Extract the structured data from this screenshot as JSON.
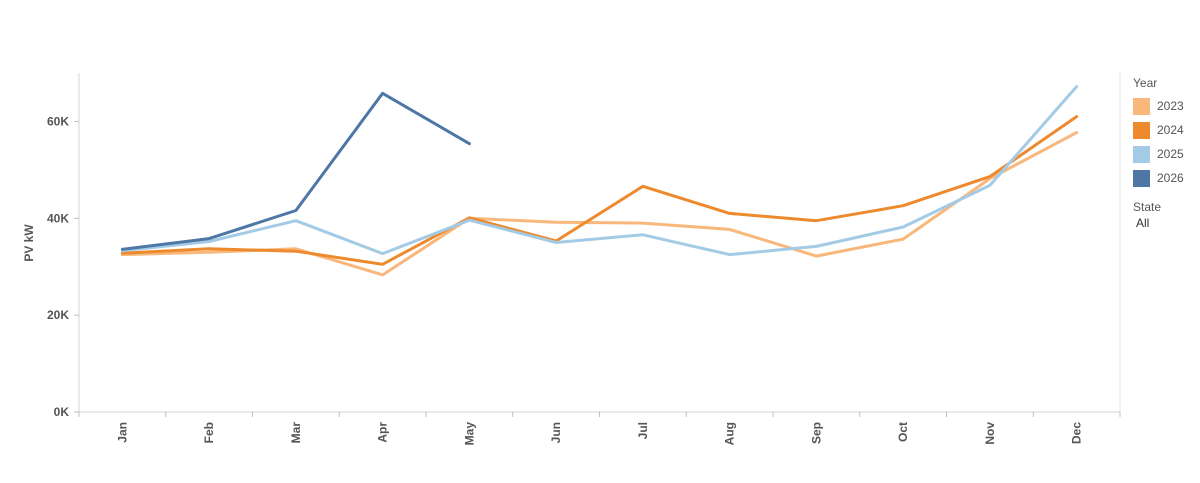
{
  "chart_data": {
    "type": "line",
    "ylabel": "PV kW",
    "y_ticks": [
      "0K",
      "20K",
      "40K",
      "60K"
    ],
    "y_tick_values": [
      0,
      20000,
      40000,
      60000
    ],
    "ylim": [
      0,
      70000
    ],
    "categories": [
      "Jan",
      "Feb",
      "Mar",
      "Apr",
      "May",
      "Jun",
      "Jul",
      "Aug",
      "Sep",
      "Oct",
      "Nov",
      "Dec"
    ],
    "series": [
      {
        "name": "2023",
        "color": "#F9B77B",
        "values": [
          32500,
          33000,
          33700,
          28300,
          40000,
          39200,
          39000,
          37700,
          32200,
          35700,
          48200,
          57700
        ]
      },
      {
        "name": "2024",
        "color": "#EE8A2E",
        "values": [
          32800,
          33700,
          33200,
          30500,
          40100,
          35300,
          46600,
          41000,
          39500,
          42600,
          48600,
          61000
        ]
      },
      {
        "name": "2025",
        "color": "#A3CBE6",
        "values": [
          33300,
          35200,
          39500,
          32700,
          39600,
          35000,
          36600,
          32500,
          34200,
          38200,
          46800,
          67200
        ]
      },
      {
        "name": "2026",
        "color": "#4E77A6",
        "values": [
          33600,
          35800,
          41600,
          65800,
          55400,
          null,
          null,
          null,
          null,
          null,
          null,
          null
        ]
      }
    ],
    "legend": {
      "title": "Year",
      "position": "right"
    },
    "grid": false
  },
  "filter": {
    "title": "State",
    "value": "All"
  }
}
